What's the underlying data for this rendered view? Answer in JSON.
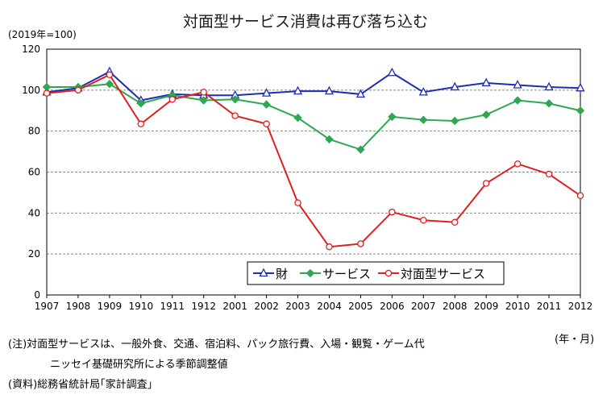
{
  "chart_data": {
    "type": "line",
    "title": "対面型サービス消費は再び落ち込む",
    "unit_label": "(2019年=100)",
    "xunit_label": "(年・月)",
    "x": [
      "1907",
      "1908",
      "1909",
      "1910",
      "1911",
      "1912",
      "2001",
      "2002",
      "2003",
      "2004",
      "2005",
      "2006",
      "2007",
      "2008",
      "2009",
      "2010",
      "2011",
      "2012"
    ],
    "ylim": [
      0,
      120
    ],
    "yticks": [
      "0",
      "20",
      "40",
      "60",
      "80",
      "100",
      "120"
    ],
    "grid": true,
    "legend_position": "bottom-center",
    "series": [
      {
        "name": "財",
        "color": "#1f2db5",
        "marker": "triangle",
        "values": [
          99,
          101,
          109,
          95,
          98,
          97.5,
          97.5,
          98.5,
          99.5,
          99.5,
          98,
          108.5,
          99,
          101.5,
          103.5,
          102.5,
          101.5,
          101
        ]
      },
      {
        "name": "サービス",
        "color": "#2ea84f",
        "marker": "diamond",
        "values": [
          101.5,
          101.5,
          103,
          93.5,
          97.5,
          95,
          95.5,
          93,
          86.5,
          76,
          71,
          87,
          85.5,
          85,
          88,
          95,
          93.5,
          90
        ]
      },
      {
        "name": "対面型サービス",
        "color": "#e02020",
        "marker": "circle",
        "values": [
          98.5,
          100,
          107.5,
          83.5,
          95.5,
          99,
          87.5,
          83.5,
          45,
          23.5,
          25,
          40.5,
          36.5,
          35.5,
          54.5,
          64,
          59,
          48.5
        ]
      }
    ]
  },
  "notes": {
    "line1": "(注)対面型サービスは、一般外食、交通、宿泊料、パック旅行費、入場・観覧・ゲーム代",
    "line2": "ニッセイ基礎研究所による季節調整値",
    "line3": "(資料)総務省統計局｢家計調査｣"
  }
}
